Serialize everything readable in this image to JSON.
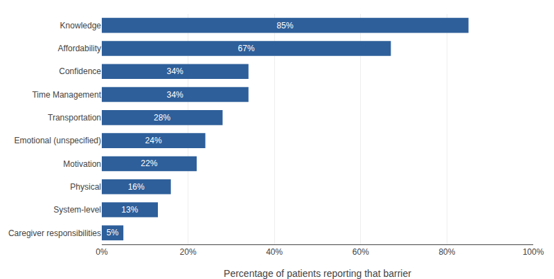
{
  "chart_data": {
    "type": "bar",
    "orientation": "horizontal",
    "categories": [
      "Caregiver responsibilities",
      "System-level",
      "Physical",
      "Motivation",
      "Emotional (unspecified)",
      "Transportation",
      "Time Management",
      "Confidence",
      "Affordability",
      "Knowledge"
    ],
    "values": [
      5,
      13,
      16,
      22,
      24,
      28,
      34,
      34,
      67,
      85
    ],
    "value_labels": [
      "5%",
      "13%",
      "16%",
      "22%",
      "24%",
      "28%",
      "34%",
      "34%",
      "67%",
      "85%"
    ],
    "data_labels": true,
    "color": "#2E5F9A",
    "xlabel": "Percentage of patients reporting that barrier",
    "xlim": [
      0,
      100
    ],
    "xticks": [
      {
        "value": 0,
        "label": "0%"
      },
      {
        "value": 20,
        "label": "20%"
      },
      {
        "value": 40,
        "label": "40%"
      },
      {
        "value": 60,
        "label": "60%"
      },
      {
        "value": 80,
        "label": "80%"
      },
      {
        "value": 100,
        "label": "100%"
      }
    ],
    "grid": true
  }
}
